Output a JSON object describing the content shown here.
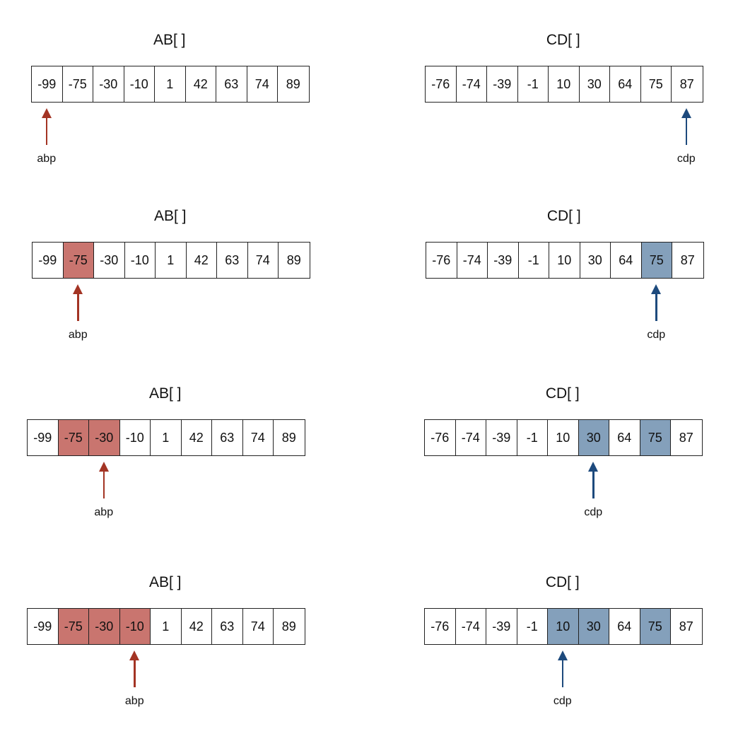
{
  "steps": [
    {
      "ab": {
        "title": "AB[ ]",
        "values": [
          "-99",
          "-75",
          "-30",
          "-10",
          "1",
          "42",
          "63",
          "74",
          "89"
        ],
        "highlighted": [],
        "pointer_index": 0,
        "pointer_label": "abp"
      },
      "cd": {
        "title": "CD[ ]",
        "values": [
          "-76",
          "-74",
          "-39",
          "-1",
          "10",
          "30",
          "64",
          "75",
          "87"
        ],
        "highlighted": [],
        "pointer_index": 8,
        "pointer_label": "cdp"
      }
    },
    {
      "ab": {
        "title": "AB[ ]",
        "values": [
          "-99",
          "-75",
          "-30",
          "-10",
          "1",
          "42",
          "63",
          "74",
          "89"
        ],
        "highlighted": [
          1
        ],
        "pointer_index": 1,
        "pointer_label": "abp"
      },
      "cd": {
        "title": "CD[ ]",
        "values": [
          "-76",
          "-74",
          "-39",
          "-1",
          "10",
          "30",
          "64",
          "75",
          "87"
        ],
        "highlighted": [
          7
        ],
        "pointer_index": 7,
        "pointer_label": "cdp"
      }
    },
    {
      "ab": {
        "title": "AB[ ]",
        "values": [
          "-99",
          "-75",
          "-30",
          "-10",
          "1",
          "42",
          "63",
          "74",
          "89"
        ],
        "highlighted": [
          1,
          2
        ],
        "pointer_index": 2,
        "pointer_label": "abp"
      },
      "cd": {
        "title": "CD[ ]",
        "values": [
          "-76",
          "-74",
          "-39",
          "-1",
          "10",
          "30",
          "64",
          "75",
          "87"
        ],
        "highlighted": [
          5,
          7
        ],
        "pointer_index": 5,
        "pointer_label": "cdp"
      }
    },
    {
      "ab": {
        "title": "AB[ ]",
        "values": [
          "-99",
          "-75",
          "-30",
          "-10",
          "1",
          "42",
          "63",
          "74",
          "89"
        ],
        "highlighted": [
          1,
          2,
          3
        ],
        "pointer_index": 3,
        "pointer_label": "abp"
      },
      "cd": {
        "title": "CD[ ]",
        "values": [
          "-76",
          "-74",
          "-39",
          "-1",
          "10",
          "30",
          "64",
          "75",
          "87"
        ],
        "highlighted": [
          4,
          5,
          7
        ],
        "pointer_index": 4,
        "pointer_label": "cdp"
      }
    }
  ],
  "colors": {
    "ab_highlight": "#c9756f",
    "ab_arrow": "#a33424",
    "cd_highlight": "#84a0bb",
    "cd_arrow": "#1d4a7d"
  }
}
